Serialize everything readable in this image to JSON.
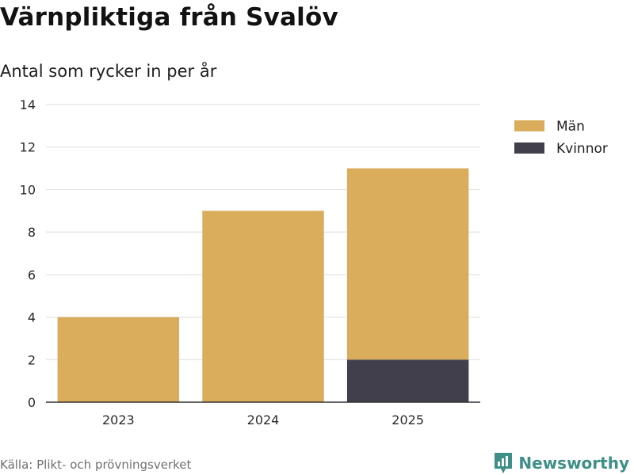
{
  "header": {
    "title": "Värnpliktiga från Svalöv",
    "subtitle": "Antal som rycker in per år"
  },
  "footer": {
    "source": "Källa: Plikt- och prövningsverket",
    "brand": "Newsworthy"
  },
  "colors": {
    "men": "#d9ad5b",
    "women": "#423f4d",
    "grid": "#dedede",
    "axis": "#333333",
    "brand": "#3e8f88"
  },
  "chart_data": {
    "type": "bar",
    "stacked": true,
    "title": "Värnpliktiga från Svalöv",
    "subtitle": "Antal som rycker in per år",
    "xlabel": "",
    "ylabel": "",
    "categories": [
      "2023",
      "2024",
      "2025"
    ],
    "series": [
      {
        "name": "Kvinnor",
        "color": "#423f4d",
        "values": [
          0,
          0,
          2
        ]
      },
      {
        "name": "Män",
        "color": "#d9ad5b",
        "values": [
          4,
          9,
          9
        ]
      }
    ],
    "ylim": [
      0,
      14
    ],
    "yticks": [
      0,
      2,
      4,
      6,
      8,
      10,
      12,
      14
    ],
    "grid": true,
    "legend": {
      "position": "top-right",
      "entries": [
        {
          "label": "Män",
          "color": "#d9ad5b"
        },
        {
          "label": "Kvinnor",
          "color": "#423f4d"
        }
      ]
    }
  }
}
